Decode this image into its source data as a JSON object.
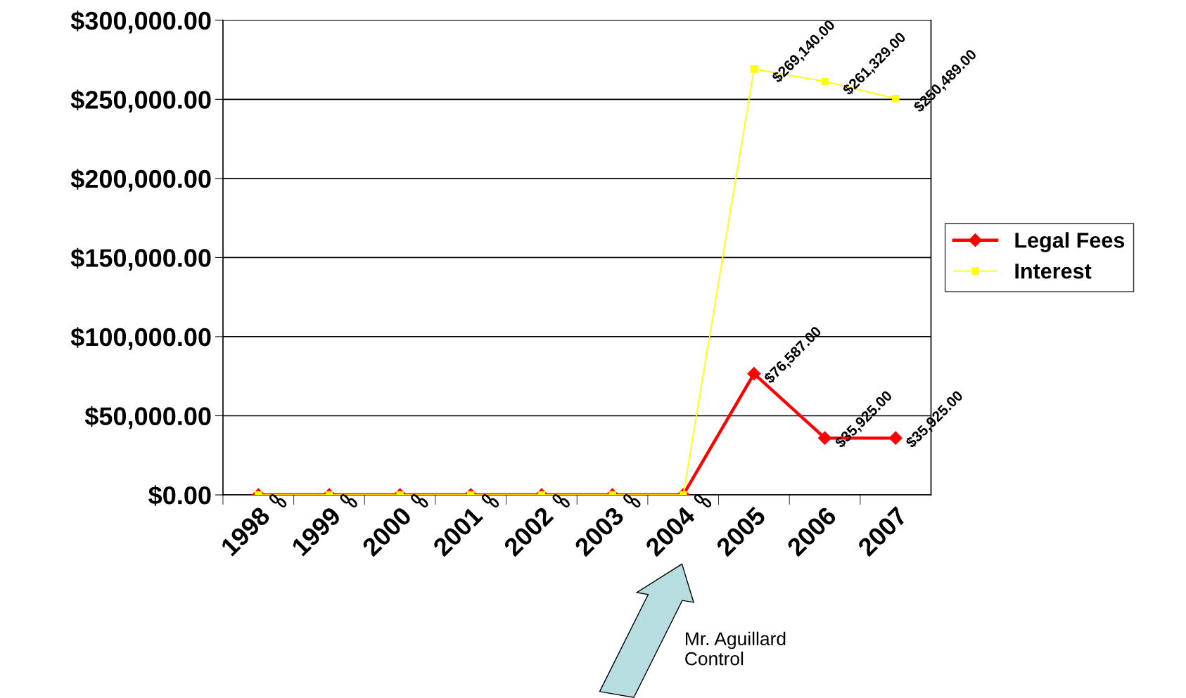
{
  "chart_data": {
    "type": "line",
    "categories": [
      "1998",
      "1999",
      "2000",
      "2001",
      "2002",
      "2003",
      "2004",
      "2005",
      "2006",
      "2007"
    ],
    "series": [
      {
        "name": "Legal Fees",
        "color": "#ff0000",
        "marker": "diamond",
        "values": [
          0,
          0,
          0,
          0,
          0,
          0,
          0,
          76587,
          35925,
          35925
        ],
        "value_labels": [
          "0",
          "0",
          "0",
          "0",
          "0",
          "0",
          "0",
          "$76,587.00",
          "$35,925.00",
          "$35,925.00"
        ]
      },
      {
        "name": "Interest",
        "color": "#ffff00",
        "marker": "square",
        "values": [
          0,
          0,
          0,
          0,
          0,
          0,
          0,
          269140,
          261329,
          250489
        ],
        "value_labels": [
          "0",
          "0",
          "0",
          "0",
          "0",
          "0",
          "0",
          "$269,140.00",
          "$261,329.00",
          "$250,489.00"
        ]
      }
    ],
    "ylim": [
      0,
      300000
    ],
    "yticks": [
      {
        "value": 0,
        "label": "$0.00"
      },
      {
        "value": 50000,
        "label": "$50,000.00"
      },
      {
        "value": 100000,
        "label": "$100,000.00"
      },
      {
        "value": 150000,
        "label": "$150,000.00"
      },
      {
        "value": 200000,
        "label": "$200,000.00"
      },
      {
        "value": 250000,
        "label": "$250,000.00"
      },
      {
        "value": 300000,
        "label": "$300,000.00"
      }
    ],
    "grid": "y",
    "legend": "right",
    "annotations": [
      "Mr. Aguillard\nControl"
    ]
  }
}
